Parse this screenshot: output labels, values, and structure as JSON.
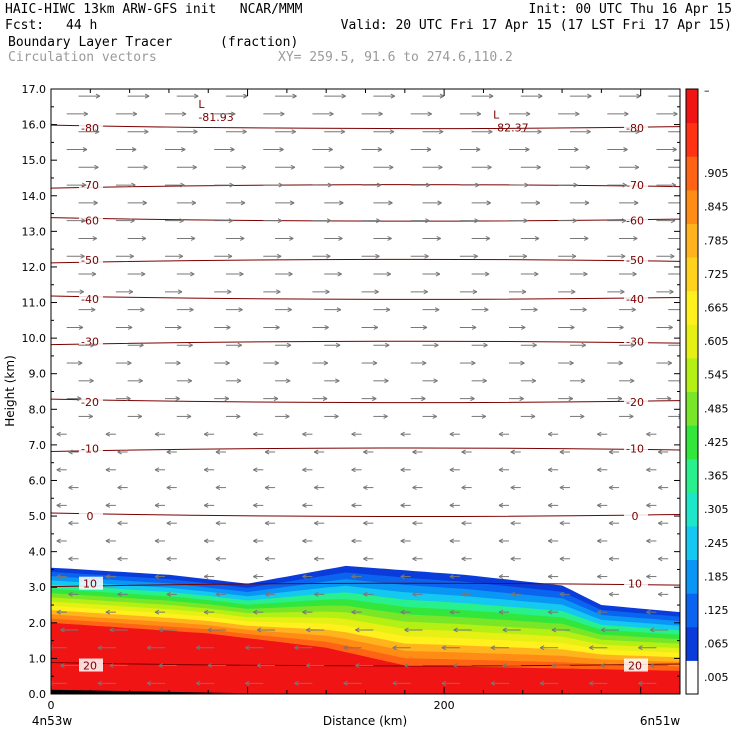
{
  "header": {
    "line1_left": "HAIC-HIWC 13km ARW-GFS init   NCAR/MMM",
    "line1_right": "Init: 00 UTC Thu 16 Apr 15",
    "fcst_label": "Fcst:",
    "fcst_value": "44 h",
    "valid": "Valid: 20 UTC Fri 17 Apr 15 (17 LST Fri 17 Apr 15)",
    "field": "Boundary Layer Tracer",
    "field_units": "(fraction)",
    "vectors": "Circulation vectors",
    "xy": "XY= 259.5, 91.6 to 274.6,110.2"
  },
  "chart_data": {
    "type": "heatmap",
    "xlabel": "Distance (km)",
    "ylabel": "Height (km)",
    "xlim": [
      0,
      320
    ],
    "ylim": [
      0,
      17
    ],
    "x_ticks": [
      0,
      200
    ],
    "y_ticks": [
      "0.0",
      "1.0",
      "2.0",
      "3.0",
      "4.0",
      "5.0",
      "6.0",
      "7.0",
      "8.0",
      "9.0",
      "10.0",
      "11.0",
      "12.0",
      "13.0",
      "14.0",
      "15.0",
      "16.0",
      "17.0"
    ],
    "x_end_labels": {
      "left": "4n53w",
      "right": "6n51w"
    },
    "colorbar": {
      "labels": [
        ".005",
        ".065",
        ".125",
        ".185",
        ".245",
        ".305",
        ".365",
        ".425",
        ".485",
        ".545",
        ".605",
        ".665",
        ".725",
        ".785",
        ".845",
        ".905"
      ],
      "top_label": "–",
      "colors": [
        "#ffffff",
        "#0a3cdc",
        "#0a64f0",
        "#0a96f5",
        "#14c8f0",
        "#1ee6c8",
        "#28f08c",
        "#32e63c",
        "#7ae628",
        "#b4f014",
        "#e6f014",
        "#fff01e",
        "#ffd21e",
        "#ffb41e",
        "#ff8c14",
        "#ff6414",
        "#ff3214",
        "#f01414"
      ]
    },
    "contours": [
      {
        "label": "-80",
        "height_km": 15.9
      },
      {
        "label": "-70",
        "height_km": 14.3
      },
      {
        "label": "-60",
        "height_km": 13.3
      },
      {
        "label": "-50",
        "height_km": 12.2
      },
      {
        "label": "-40",
        "height_km": 11.1
      },
      {
        "label": "-30",
        "height_km": 9.9
      },
      {
        "label": "-20",
        "height_km": 8.2
      },
      {
        "label": "-10",
        "height_km": 6.9
      },
      {
        "label": "0",
        "height_km": 5.0
      },
      {
        "label": "10",
        "height_km": 3.1
      },
      {
        "label": "20",
        "height_km": 0.8
      }
    ],
    "minima": [
      {
        "marker": "L",
        "value": "-81.93",
        "x_km": 78,
        "height_km": 16.3
      },
      {
        "marker": "L",
        "value": "-82.37",
        "x_km": 228,
        "height_km": 16.0
      }
    ],
    "tracer_field": {
      "top_height_km_at_x": [
        [
          0,
          3.55
        ],
        [
          60,
          3.35
        ],
        [
          100,
          3.1
        ],
        [
          150,
          3.6
        ],
        [
          210,
          3.35
        ],
        [
          260,
          3.05
        ],
        [
          280,
          2.5
        ],
        [
          320,
          2.3
        ]
      ],
      "high_value_top_km_at_x": [
        [
          0,
          2.0
        ],
        [
          80,
          1.7
        ],
        [
          140,
          1.3
        ],
        [
          180,
          0.8
        ],
        [
          320,
          0.65
        ]
      ]
    }
  }
}
